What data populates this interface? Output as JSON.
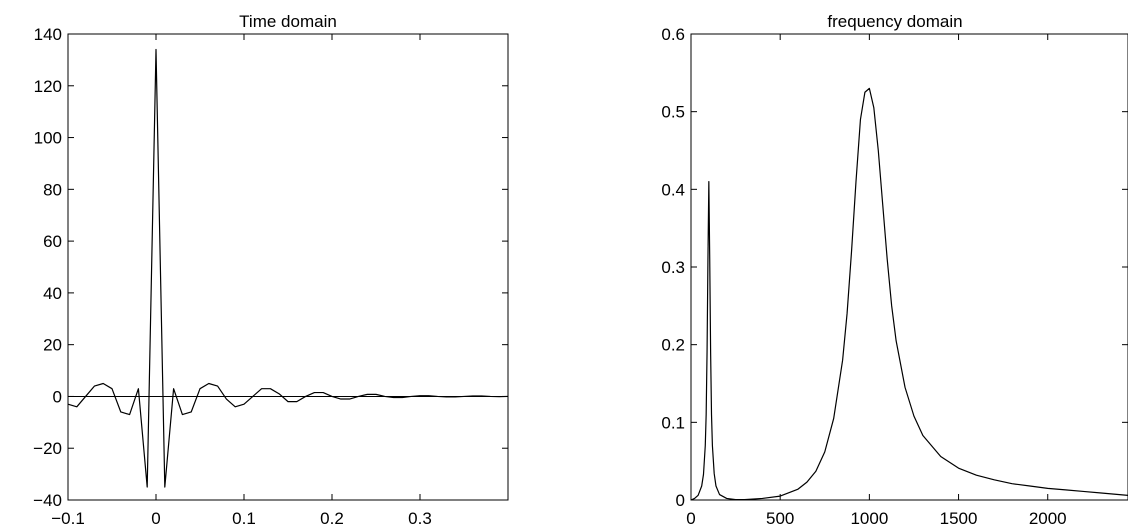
{
  "chart_data": [
    {
      "type": "line",
      "title": "Time domain",
      "xlabel": "",
      "ylabel": "",
      "xlim": [
        -0.1,
        0.4
      ],
      "ylim": [
        -40,
        140
      ],
      "x_ticks": [
        -0.1,
        0,
        0.1,
        0.2,
        0.3
      ],
      "x_tick_labels": [
        "−0.1",
        "0",
        "0.1",
        "0.2",
        "0.3"
      ],
      "y_ticks": [
        -40,
        -20,
        0,
        20,
        40,
        60,
        80,
        100,
        120,
        140
      ],
      "y_tick_labels": [
        "−40",
        "−20",
        "0",
        "20",
        "40",
        "60",
        "80",
        "100",
        "120",
        "140"
      ],
      "zero_line": true,
      "grid": false,
      "series": [
        {
          "x": [
            -0.1,
            -0.09,
            -0.08,
            -0.07,
            -0.06,
            -0.05,
            -0.04,
            -0.03,
            -0.02,
            -0.01,
            0,
            0.01,
            0.02,
            0.03,
            0.04,
            0.05,
            0.06,
            0.07,
            0.08,
            0.09,
            0.1,
            0.11,
            0.12,
            0.13,
            0.14,
            0.15,
            0.16,
            0.17,
            0.18,
            0.19,
            0.2,
            0.21,
            0.22,
            0.23,
            0.24,
            0.25,
            0.26,
            0.27,
            0.28,
            0.29,
            0.3,
            0.31,
            0.32,
            0.33,
            0.34,
            0.35,
            0.36,
            0.37,
            0.38,
            0.39,
            0.4
          ],
          "y": [
            -3,
            -4,
            0,
            4,
            5,
            3,
            -6,
            -7,
            3,
            -35,
            134,
            -35,
            3,
            -7,
            -6,
            3,
            5,
            4,
            -1,
            -4,
            -3,
            0,
            3,
            3,
            1,
            -2,
            -2,
            0,
            1.5,
            1.5,
            0,
            -1,
            -1,
            0,
            0.8,
            0.8,
            0,
            -0.4,
            -0.4,
            0,
            0.3,
            0.3,
            0,
            -0.2,
            -0.2,
            0,
            0.2,
            0.2,
            0,
            -0.1,
            0
          ]
        }
      ]
    },
    {
      "type": "line",
      "title": "frequency domain",
      "xlabel": "",
      "ylabel": "",
      "xlim": [
        0,
        2450
      ],
      "ylim": [
        0,
        0.6
      ],
      "x_ticks": [
        0,
        500,
        1000,
        1500,
        2000
      ],
      "x_tick_labels": [
        "0",
        "500",
        "1000",
        "1500",
        "2000"
      ],
      "y_ticks": [
        0,
        0.1,
        0.2,
        0.3,
        0.4,
        0.5,
        0.6
      ],
      "y_tick_labels": [
        "0",
        "0.1",
        "0.2",
        "0.3",
        "0.4",
        "0.5",
        "0.6"
      ],
      "grid": false,
      "series": [
        {
          "x": [
            0,
            20,
            40,
            60,
            70,
            80,
            85,
            90,
            95,
            100,
            105,
            110,
            115,
            120,
            130,
            140,
            160,
            200,
            250,
            300,
            400,
            500,
            600,
            650,
            700,
            750,
            800,
            850,
            875,
            900,
            925,
            950,
            975,
            1000,
            1025,
            1050,
            1075,
            1100,
            1125,
            1150,
            1200,
            1250,
            1300,
            1400,
            1500,
            1600,
            1700,
            1800,
            1900,
            2000,
            2100,
            2200,
            2300,
            2450
          ],
          "y": [
            0.0,
            0.002,
            0.006,
            0.018,
            0.033,
            0.07,
            0.11,
            0.19,
            0.31,
            0.41,
            0.31,
            0.19,
            0.11,
            0.07,
            0.034,
            0.018,
            0.007,
            0.002,
            0.0005,
            0.0005,
            0.002,
            0.005,
            0.014,
            0.023,
            0.037,
            0.062,
            0.105,
            0.18,
            0.24,
            0.32,
            0.41,
            0.49,
            0.525,
            0.53,
            0.505,
            0.45,
            0.38,
            0.31,
            0.25,
            0.205,
            0.145,
            0.108,
            0.083,
            0.056,
            0.041,
            0.032,
            0.026,
            0.021,
            0.018,
            0.015,
            0.013,
            0.011,
            0.009,
            0.006
          ]
        }
      ]
    }
  ]
}
